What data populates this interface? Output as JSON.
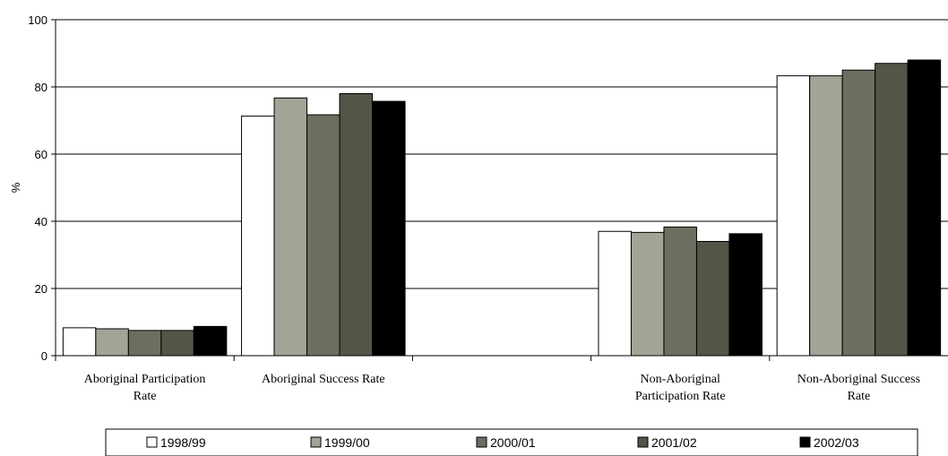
{
  "chart_data": {
    "type": "bar",
    "ylabel": "%",
    "ylim": [
      0,
      100
    ],
    "yticks": [
      0,
      20,
      40,
      60,
      80,
      100
    ],
    "grid": true,
    "legend_position": "bottom",
    "categories": [
      "Aboriginal Participation Rate",
      "Aboriginal Success Rate",
      "",
      "Non-Aboriginal Participation Rate",
      "Non-Aboriginal Success Rate"
    ],
    "category_label_lines": [
      [
        "Aboriginal Participation",
        "Rate"
      ],
      [
        "Aboriginal Success Rate"
      ],
      [],
      [
        "Non-Aboriginal",
        "Participation Rate"
      ],
      [
        "Non-Aboriginal Success",
        "Rate"
      ]
    ],
    "series": [
      {
        "name": "1998/99",
        "color": "#ffffff",
        "values": [
          8.3,
          71.3,
          null,
          37.0,
          83.3
        ]
      },
      {
        "name": "1999/00",
        "color": "#a3a396",
        "values": [
          8.0,
          76.7,
          null,
          36.7,
          83.3
        ]
      },
      {
        "name": "2000/01",
        "color": "#6d6e60",
        "values": [
          7.5,
          71.7,
          null,
          38.3,
          85.0
        ]
      },
      {
        "name": "2001/02",
        "color": "#545447",
        "values": [
          7.5,
          78.0,
          null,
          34.0,
          87.0
        ]
      },
      {
        "name": "2002/03",
        "color": "#000000",
        "values": [
          8.7,
          75.7,
          null,
          36.3,
          88.0
        ]
      }
    ]
  }
}
